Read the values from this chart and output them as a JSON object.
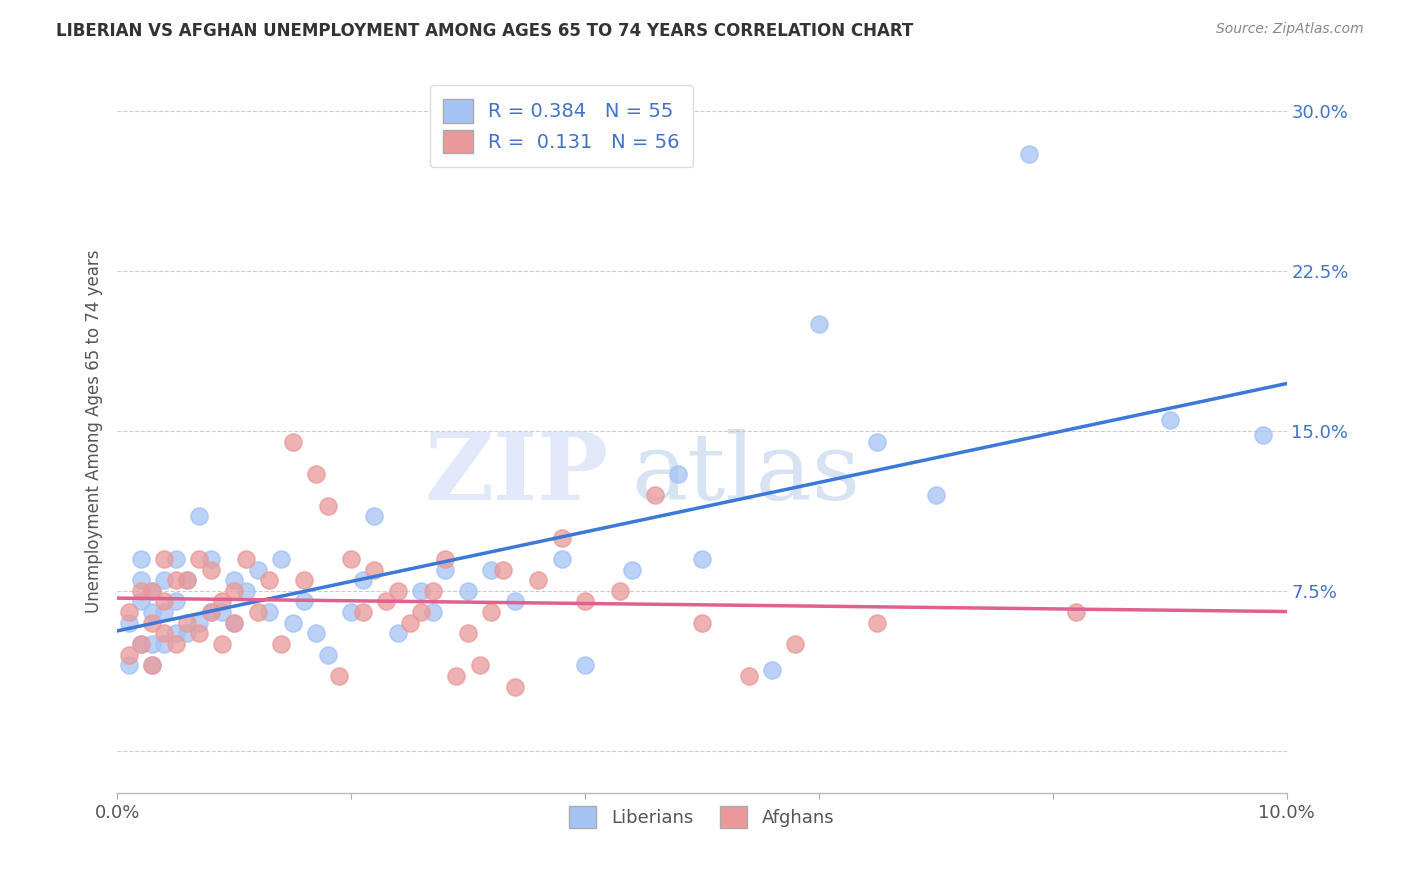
{
  "title": "LIBERIAN VS AFGHAN UNEMPLOYMENT AMONG AGES 65 TO 74 YEARS CORRELATION CHART",
  "source": "Source: ZipAtlas.com",
  "ylabel": "Unemployment Among Ages 65 to 74 years",
  "xlim": [
    0.0,
    0.1
  ],
  "ylim": [
    -0.02,
    0.32
  ],
  "liberian_R": "0.384",
  "liberian_N": "55",
  "afghan_R": "0.131",
  "afghan_N": "56",
  "liberian_color": "#a4c2f4",
  "afghan_color": "#ea9999",
  "trendline_liberian_color": "#3c78d8",
  "trendline_afghan_color": "#e06090",
  "watermark_zip": "ZIP",
  "watermark_atlas": "atlas",
  "background_color": "#ffffff",
  "grid_color": "#cccccc",
  "liberian_x": [
    0.001,
    0.001,
    0.002,
    0.002,
    0.002,
    0.002,
    0.003,
    0.003,
    0.003,
    0.003,
    0.004,
    0.004,
    0.004,
    0.005,
    0.005,
    0.005,
    0.006,
    0.006,
    0.007,
    0.007,
    0.008,
    0.008,
    0.009,
    0.01,
    0.01,
    0.011,
    0.012,
    0.013,
    0.014,
    0.015,
    0.016,
    0.017,
    0.018,
    0.02,
    0.021,
    0.022,
    0.024,
    0.026,
    0.027,
    0.028,
    0.03,
    0.032,
    0.034,
    0.038,
    0.04,
    0.044,
    0.048,
    0.05,
    0.056,
    0.06,
    0.065,
    0.07,
    0.078,
    0.09,
    0.098
  ],
  "liberian_y": [
    0.04,
    0.06,
    0.05,
    0.07,
    0.08,
    0.09,
    0.04,
    0.05,
    0.065,
    0.075,
    0.05,
    0.065,
    0.08,
    0.055,
    0.07,
    0.09,
    0.055,
    0.08,
    0.06,
    0.11,
    0.065,
    0.09,
    0.065,
    0.06,
    0.08,
    0.075,
    0.085,
    0.065,
    0.09,
    0.06,
    0.07,
    0.055,
    0.045,
    0.065,
    0.08,
    0.11,
    0.055,
    0.075,
    0.065,
    0.085,
    0.075,
    0.085,
    0.07,
    0.09,
    0.04,
    0.085,
    0.13,
    0.09,
    0.038,
    0.2,
    0.145,
    0.12,
    0.28,
    0.155,
    0.148
  ],
  "afghan_x": [
    0.001,
    0.001,
    0.002,
    0.002,
    0.003,
    0.003,
    0.003,
    0.004,
    0.004,
    0.004,
    0.005,
    0.005,
    0.006,
    0.006,
    0.007,
    0.007,
    0.008,
    0.008,
    0.009,
    0.009,
    0.01,
    0.01,
    0.011,
    0.012,
    0.013,
    0.014,
    0.015,
    0.016,
    0.017,
    0.018,
    0.019,
    0.02,
    0.021,
    0.022,
    0.023,
    0.024,
    0.025,
    0.026,
    0.027,
    0.028,
    0.029,
    0.03,
    0.031,
    0.032,
    0.033,
    0.034,
    0.036,
    0.038,
    0.04,
    0.043,
    0.046,
    0.05,
    0.054,
    0.058,
    0.065,
    0.082
  ],
  "afghan_y": [
    0.045,
    0.065,
    0.05,
    0.075,
    0.04,
    0.06,
    0.075,
    0.055,
    0.07,
    0.09,
    0.05,
    0.08,
    0.06,
    0.08,
    0.055,
    0.09,
    0.065,
    0.085,
    0.05,
    0.07,
    0.06,
    0.075,
    0.09,
    0.065,
    0.08,
    0.05,
    0.145,
    0.08,
    0.13,
    0.115,
    0.035,
    0.09,
    0.065,
    0.085,
    0.07,
    0.075,
    0.06,
    0.065,
    0.075,
    0.09,
    0.035,
    0.055,
    0.04,
    0.065,
    0.085,
    0.03,
    0.08,
    0.1,
    0.07,
    0.075,
    0.12,
    0.06,
    0.035,
    0.05,
    0.06,
    0.065
  ]
}
